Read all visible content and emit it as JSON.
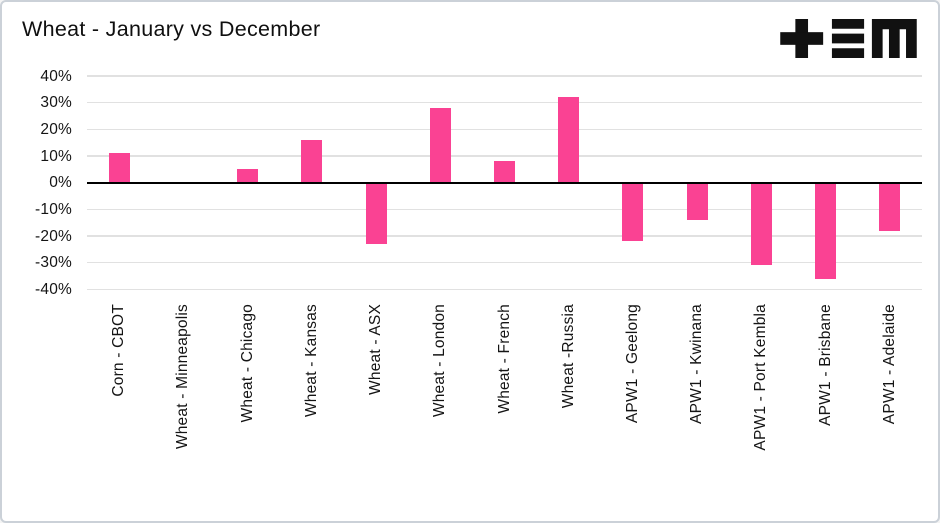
{
  "header": {
    "title": "Wheat - January vs December"
  },
  "brand": {
    "logo_icon": "tem-logo"
  },
  "chart_data": {
    "type": "bar",
    "title": "Wheat - January vs December",
    "categories": [
      "Corn - CBOT",
      "Wheat - Minneapolis",
      "Wheat - Chicago",
      "Wheat - Kansas",
      "Wheat - ASX",
      "Wheat - London",
      "Wheat - French",
      "Wheat -Russia",
      "APW1 - Geelong",
      "APW1 - Kwinana",
      "APW1 - Port Kembla",
      "APW1 - Brisbane",
      "APW1 - Adelaide"
    ],
    "values": [
      11,
      0,
      5,
      16,
      -23,
      28,
      8,
      32,
      -22,
      -14,
      -31,
      -36,
      -18
    ],
    "unit": "%",
    "xlabel": "",
    "ylabel": "",
    "ylim": [
      -40,
      40
    ],
    "ytick_step": 10,
    "ytick_labels": [
      "40%",
      "30%",
      "20%",
      "10%",
      "0%",
      "-10%",
      "-20%",
      "-30%",
      "-40%"
    ],
    "grid": true,
    "legend": "none",
    "bar_color": "#FA4293"
  },
  "colors": {
    "bar": "#FA4293",
    "gridline": "#E1E1E1",
    "zero_line": "#000000",
    "text": "#141414",
    "background": "#FFFFFF",
    "card_border": "#CBD1D8",
    "logo": "#111111"
  }
}
